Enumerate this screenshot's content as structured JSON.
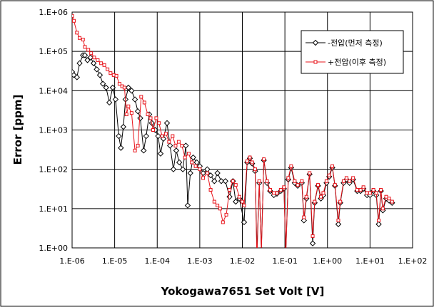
{
  "chart_data": {
    "type": "scatter-line",
    "log_x": true,
    "log_y": true,
    "grid": true,
    "legend": "top-right",
    "x_label": "Yokogawa7651 Set Volt [V]",
    "y_label": "Error [ppm]",
    "xlim": [
      1e-06,
      100
    ],
    "ylim": [
      1,
      1000000
    ],
    "xticks": [
      {
        "value": 1e-06,
        "label": "1.E-06"
      },
      {
        "value": 1e-05,
        "label": "1.E-05"
      },
      {
        "value": 0.0001,
        "label": "1.E-04"
      },
      {
        "value": 0.001,
        "label": "1.E-03"
      },
      {
        "value": 0.01,
        "label": "1.E-02"
      },
      {
        "value": 0.1,
        "label": "1.E-01"
      },
      {
        "value": 1,
        "label": "1.E+00"
      },
      {
        "value": 10,
        "label": "1.E+01"
      },
      {
        "value": 100,
        "label": "1.E+02"
      }
    ],
    "yticks": [
      {
        "value": 1,
        "label": "1.E+00"
      },
      {
        "value": 10,
        "label": "1.E+01"
      },
      {
        "value": 100,
        "label": "1.E+02"
      },
      {
        "value": 1000,
        "label": "1.E+03"
      },
      {
        "value": 10000,
        "label": "1.E+04"
      },
      {
        "value": 100000,
        "label": "1.E+05"
      },
      {
        "value": 1000000,
        "label": "1.E+06"
      }
    ],
    "series": [
      {
        "name": "-전압(먼저 측정)",
        "color": "#000000",
        "marker": "diamond",
        "x": [
          1e-06,
          1.1e-06,
          1.3e-06,
          1.5e-06,
          1.8e-06,
          2e-06,
          2.3e-06,
          2.7e-06,
          3.2e-06,
          3.8e-06,
          4.5e-06,
          5.3e-06,
          6.3e-06,
          7.5e-06,
          9e-06,
          1.05e-05,
          1.25e-05,
          1.4e-05,
          1.6e-05,
          1.8e-05,
          2.1e-05,
          2.5e-05,
          3e-05,
          3.5e-05,
          4e-05,
          4.8e-05,
          5.5e-05,
          6.5e-05,
          7.5e-05,
          9e-05,
          0.000105,
          0.00012,
          0.00014,
          0.00017,
          0.0002,
          0.00024,
          0.00028,
          0.00033,
          0.0004,
          0.00047,
          0.00052,
          0.0006,
          0.0007,
          0.00085,
          0.001,
          0.0012,
          0.0015,
          0.0018,
          0.0022,
          0.0026,
          0.0032,
          0.004,
          0.005,
          0.006,
          0.007,
          0.0085,
          0.011,
          0.013,
          0.015,
          0.017,
          0.02,
          0.022,
          0.025,
          0.028,
          0.032,
          0.038,
          0.045,
          0.055,
          0.065,
          0.08,
          0.095,
          0.105,
          0.12,
          0.14,
          0.17,
          0.2,
          0.25,
          0.28,
          0.32,
          0.38,
          0.45,
          0.5,
          0.6,
          0.7,
          0.8,
          0.95,
          1.1,
          1.3,
          1.5,
          1.8,
          2,
          2.4,
          2.8,
          3.3,
          4,
          5,
          6,
          7,
          8.5,
          10,
          12,
          14,
          16,
          18,
          20,
          24,
          28,
          33
        ],
        "values": [
          30000,
          25000,
          22000,
          50000,
          80000,
          80000,
          60000,
          70000,
          50000,
          35000,
          25000,
          15000,
          12000,
          5000,
          12000,
          6000,
          700,
          350,
          1200,
          6000,
          12000,
          10000,
          6000,
          3000,
          2000,
          300,
          700,
          2500,
          1500,
          1000,
          700,
          250,
          600,
          1500,
          400,
          100,
          300,
          150,
          100,
          400,
          12,
          80,
          200,
          150,
          120,
          80,
          100,
          70,
          50,
          80,
          50,
          50,
          20,
          50,
          15,
          18,
          4.5,
          150,
          190,
          140,
          90,
          0.8,
          45,
          0.9,
          170,
          45,
          28,
          22,
          24,
          28,
          32,
          0.8,
          55,
          110,
          45,
          38,
          45,
          5,
          18,
          75,
          1.3,
          14,
          38,
          18,
          22,
          45,
          65,
          110,
          38,
          4,
          14,
          45,
          55,
          45,
          55,
          28,
          28,
          32,
          22,
          22,
          28,
          22,
          4,
          28,
          9,
          18,
          16,
          14
        ]
      },
      {
        "name": "+전압(이후 측정)",
        "color": "#e8141b",
        "marker": "square",
        "x": [
          1e-06,
          1.1e-06,
          1.3e-06,
          1.5e-06,
          1.8e-06,
          2e-06,
          2.4e-06,
          2.8e-06,
          3.3e-06,
          4e-06,
          4.8e-06,
          5.7e-06,
          6.8e-06,
          8e-06,
          9.5e-06,
          1.1e-05,
          1.3e-05,
          1.5e-05,
          1.7e-05,
          1.9e-05,
          2.1e-05,
          2.5e-05,
          3e-05,
          3.5e-05,
          4.2e-05,
          5e-05,
          6e-05,
          7e-05,
          8e-05,
          9.5e-05,
          0.00011,
          0.00013,
          0.00016,
          0.00019,
          0.00023,
          0.00027,
          0.00032,
          0.00038,
          0.00045,
          0.00055,
          0.00065,
          0.0008,
          0.001,
          0.0012,
          0.0015,
          0.0018,
          0.0022,
          0.0026,
          0.003,
          0.0035,
          0.0042,
          0.005,
          0.006,
          0.007,
          0.0085,
          0.01,
          0.011,
          0.013,
          0.015,
          0.017,
          0.02,
          0.022,
          0.025,
          0.028,
          0.032,
          0.038,
          0.045,
          0.055,
          0.065,
          0.08,
          0.095,
          0.105,
          0.12,
          0.14,
          0.17,
          0.2,
          0.25,
          0.28,
          0.32,
          0.38,
          0.45,
          0.5,
          0.6,
          0.7,
          0.8,
          0.95,
          1.1,
          1.3,
          1.5,
          1.8,
          2,
          2.4,
          2.8,
          3.3,
          4,
          5,
          6,
          7,
          8.5,
          10,
          12,
          14,
          16,
          18,
          20,
          24,
          28,
          33
        ],
        "values": [
          800000,
          600000,
          300000,
          220000,
          200000,
          130000,
          110000,
          90000,
          70000,
          60000,
          50000,
          45000,
          35000,
          28000,
          25000,
          24000,
          15000,
          13000,
          12000,
          2500,
          4000,
          2700,
          300,
          400,
          7000,
          5000,
          2500,
          2000,
          1000,
          2000,
          1500,
          700,
          800,
          500,
          700,
          400,
          500,
          400,
          200,
          250,
          150,
          120,
          100,
          60,
          80,
          30,
          15,
          12,
          10,
          4.5,
          7,
          30,
          50,
          40,
          20,
          15,
          12,
          160,
          200,
          150,
          100,
          0.5,
          50,
          0.8,
          180,
          50,
          30,
          25,
          25,
          30,
          35,
          0.7,
          60,
          120,
          50,
          40,
          50,
          6,
          20,
          80,
          2,
          15,
          40,
          20,
          25,
          50,
          70,
          120,
          40,
          5,
          15,
          50,
          60,
          50,
          60,
          30,
          30,
          35,
          25,
          25,
          30,
          25,
          5,
          30,
          10,
          20,
          18,
          15
        ]
      }
    ]
  }
}
